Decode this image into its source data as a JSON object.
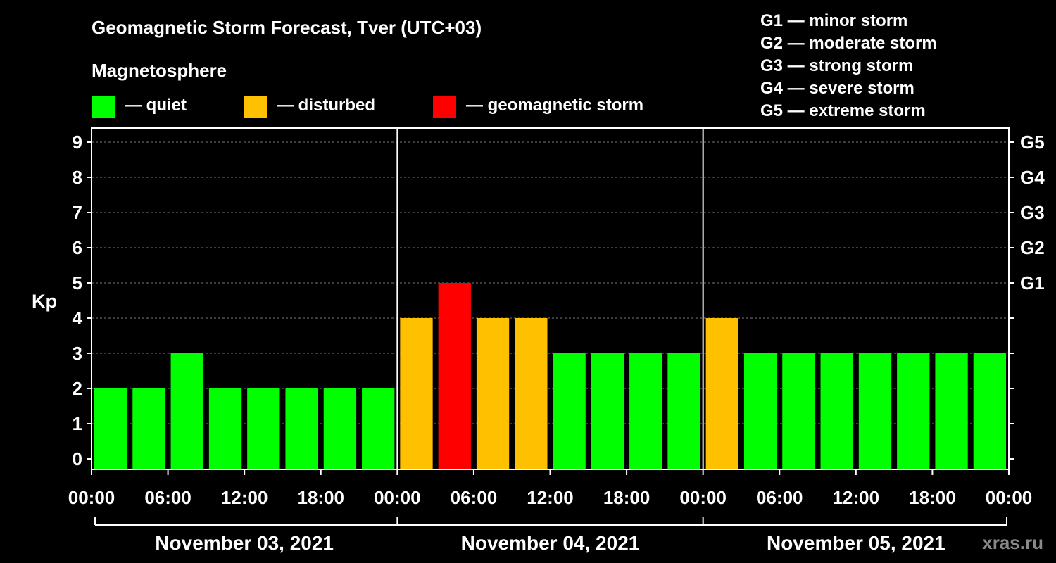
{
  "chart_data": {
    "type": "bar",
    "title": "Geomagnetic Storm Forecast, Tver (UTC+03)",
    "legend_title": "Magnetosphere",
    "legend": [
      {
        "label": "— quiet",
        "color": "#00ff00"
      },
      {
        "label": "— disturbed",
        "color": "#ffc000"
      },
      {
        "label": "— geomagnetic storm",
        "color": "#ff0000"
      }
    ],
    "storm_scale": [
      "G1 — minor storm",
      "G2 — moderate storm",
      "G3 — strong storm",
      "G4 — severe storm",
      "G5 — extreme storm"
    ],
    "ylabel": "Kp",
    "ylim": [
      0,
      9
    ],
    "yticks": [
      "0",
      "1",
      "2",
      "3",
      "4",
      "5",
      "6",
      "7",
      "8",
      "9"
    ],
    "right_ticks": [
      {
        "kp": 5,
        "label": "G1"
      },
      {
        "kp": 6,
        "label": "G2"
      },
      {
        "kp": 7,
        "label": "G3"
      },
      {
        "kp": 8,
        "label": "G4"
      },
      {
        "kp": 9,
        "label": "G5"
      }
    ],
    "xticks": [
      "00:00",
      "06:00",
      "12:00",
      "18:00",
      "00:00",
      "06:00",
      "12:00",
      "18:00",
      "00:00",
      "06:00",
      "12:00",
      "18:00",
      "00:00"
    ],
    "days": [
      "November 03, 2021",
      "November 04, 2021",
      "November 05, 2021"
    ],
    "values": [
      2,
      2,
      3,
      2,
      2,
      2,
      2,
      2,
      4,
      5,
      4,
      4,
      3,
      3,
      3,
      3,
      4,
      3,
      3,
      3,
      3,
      3,
      3,
      3
    ],
    "thresholds": {
      "disturbed": 4,
      "storm": 5
    },
    "colors": {
      "quiet": "#00ff00",
      "disturbed": "#ffc000",
      "storm": "#ff0000",
      "grid": "#777777"
    }
  },
  "watermark": "xras.ru"
}
